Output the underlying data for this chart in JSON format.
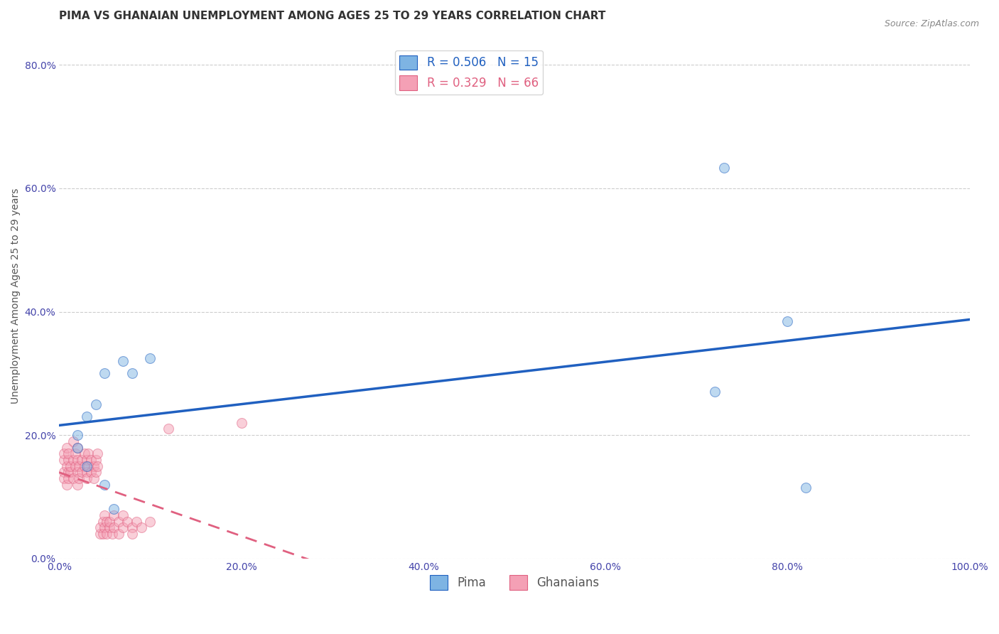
{
  "title": "PIMA VS GHANAIAN UNEMPLOYMENT AMONG AGES 25 TO 29 YEARS CORRELATION CHART",
  "source": "Source: ZipAtlas.com",
  "xlabel": "",
  "ylabel": "Unemployment Among Ages 25 to 29 years",
  "xlim": [
    0.0,
    1.0
  ],
  "ylim": [
    0.0,
    0.85
  ],
  "xticks": [
    0.0,
    0.2,
    0.4,
    0.6,
    0.8,
    1.0
  ],
  "xtick_labels": [
    "0.0%",
    "20.0%",
    "40.0%",
    "60.0%",
    "80.0%",
    "100.0%"
  ],
  "yticks": [
    0.0,
    0.2,
    0.4,
    0.6,
    0.8
  ],
  "ytick_labels": [
    "0.0%",
    "20.0%",
    "40.0%",
    "60.0%",
    "80.0%"
  ],
  "pima_color": "#7EB4E3",
  "ghanaian_color": "#F4A0B5",
  "pima_line_color": "#2060C0",
  "ghanaian_line_color": "#E06080",
  "pima_R": 0.506,
  "pima_N": 15,
  "ghanaian_R": 0.329,
  "ghanaian_N": 66,
  "legend_pima_label": "R = 0.506   N = 15",
  "legend_ghanaian_label": "R = 0.329   N = 66",
  "legend_bottom_pima": "Pima",
  "legend_bottom_ghanaian": "Ghanaians",
  "pima_x": [
    0.02,
    0.02,
    0.03,
    0.03,
    0.04,
    0.05,
    0.05,
    0.06,
    0.07,
    0.08,
    0.1,
    0.72,
    0.73,
    0.8,
    0.82
  ],
  "pima_y": [
    0.18,
    0.2,
    0.15,
    0.23,
    0.25,
    0.12,
    0.3,
    0.08,
    0.32,
    0.3,
    0.325,
    0.27,
    0.633,
    0.385,
    0.115
  ],
  "ghanaian_x": [
    0.005,
    0.005,
    0.005,
    0.005,
    0.008,
    0.008,
    0.008,
    0.01,
    0.01,
    0.01,
    0.01,
    0.012,
    0.012,
    0.015,
    0.015,
    0.015,
    0.018,
    0.018,
    0.02,
    0.02,
    0.02,
    0.02,
    0.022,
    0.022,
    0.025,
    0.025,
    0.028,
    0.028,
    0.03,
    0.03,
    0.03,
    0.032,
    0.032,
    0.035,
    0.035,
    0.038,
    0.038,
    0.04,
    0.04,
    0.042,
    0.042,
    0.045,
    0.045,
    0.048,
    0.048,
    0.05,
    0.05,
    0.052,
    0.052,
    0.055,
    0.055,
    0.058,
    0.06,
    0.06,
    0.065,
    0.065,
    0.07,
    0.07,
    0.075,
    0.08,
    0.08,
    0.085,
    0.09,
    0.1,
    0.12,
    0.2
  ],
  "ghanaian_y": [
    0.16,
    0.17,
    0.14,
    0.13,
    0.18,
    0.15,
    0.12,
    0.16,
    0.17,
    0.13,
    0.14,
    0.14,
    0.15,
    0.19,
    0.16,
    0.13,
    0.17,
    0.15,
    0.18,
    0.16,
    0.14,
    0.12,
    0.15,
    0.13,
    0.16,
    0.14,
    0.17,
    0.15,
    0.14,
    0.16,
    0.13,
    0.15,
    0.17,
    0.14,
    0.16,
    0.13,
    0.15,
    0.16,
    0.14,
    0.17,
    0.15,
    0.04,
    0.05,
    0.06,
    0.04,
    0.05,
    0.07,
    0.06,
    0.04,
    0.05,
    0.06,
    0.04,
    0.05,
    0.07,
    0.06,
    0.04,
    0.05,
    0.07,
    0.06,
    0.05,
    0.04,
    0.06,
    0.05,
    0.06,
    0.21,
    0.22
  ],
  "background_color": "#FFFFFF",
  "grid_color": "#CCCCCC",
  "marker_size": 100,
  "marker_alpha": 0.5,
  "title_fontsize": 11,
  "axis_label_fontsize": 10,
  "tick_fontsize": 10
}
